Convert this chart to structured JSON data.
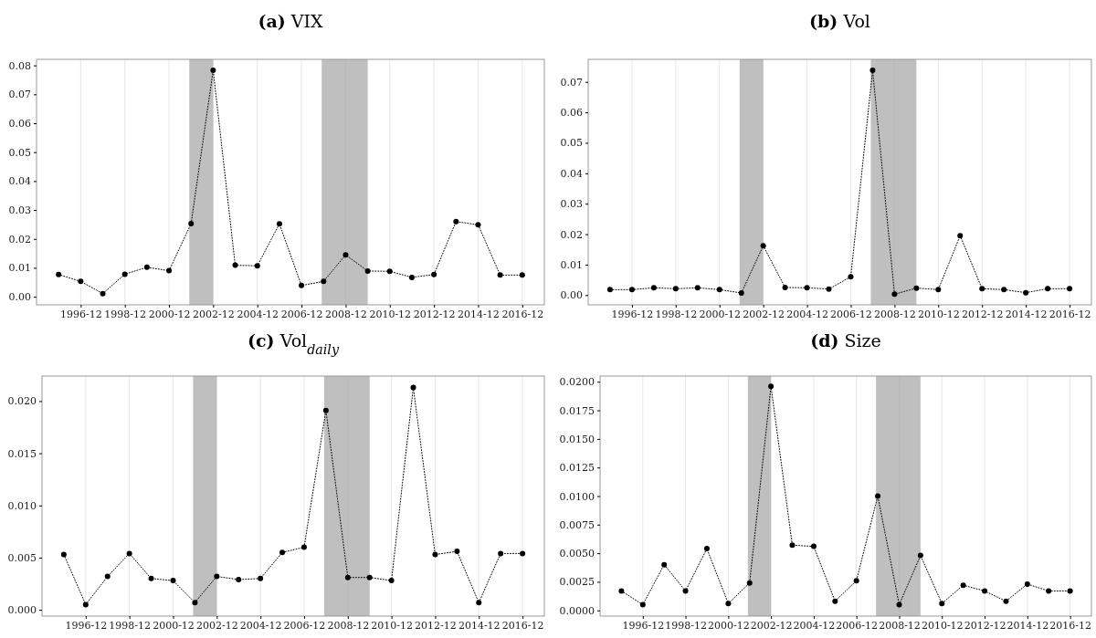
{
  "chart_data": [
    {
      "type": "line",
      "title": "(a) VIX",
      "x": [
        "1995-12",
        "1996-12",
        "1997-12",
        "1998-12",
        "1999-12",
        "2000-12",
        "2001-12",
        "2002-12",
        "2003-12",
        "2004-12",
        "2005-12",
        "2006-12",
        "2007-12",
        "2008-12",
        "2009-12",
        "2010-12",
        "2011-12",
        "2012-12",
        "2013-12",
        "2014-12",
        "2015-12",
        "2016-12"
      ],
      "series": [
        {
          "color": "#000000",
          "values": [
            0.0077,
            0.0053,
            0.0011,
            0.0078,
            0.0102,
            0.009,
            0.0253,
            0.0783,
            0.0109,
            0.0107,
            0.0252,
            0.0039,
            0.0053,
            0.0145,
            0.0089,
            0.0088,
            0.0067,
            0.0077,
            0.026,
            0.0249,
            0.0075,
            0.0075
          ]
        }
      ],
      "xlim": [
        "1994-12",
        "2017-12"
      ],
      "xticks": [
        "1996-12",
        "1998-12",
        "2000-12",
        "2002-12",
        "2004-12",
        "2006-12",
        "2008-12",
        "2010-12",
        "2012-12",
        "2014-12",
        "2016-12"
      ],
      "ylim": [
        -0.0028,
        0.0821
      ],
      "yticks": [
        {
          "value": 0,
          "label": "0.00"
        },
        {
          "value": 0.01,
          "label": "0.01"
        },
        {
          "value": 0.02,
          "label": "0.02"
        },
        {
          "value": 0.03,
          "label": "0.03"
        },
        {
          "value": 0.04,
          "label": "0.04"
        },
        {
          "value": 0.05,
          "label": "0.05"
        },
        {
          "value": 0.06,
          "label": "0.06"
        },
        {
          "value": 0.07,
          "label": "0.07"
        },
        {
          "value": 0.08,
          "label": "0.08"
        }
      ],
      "bands": [
        {
          "axis": "x",
          "from": "2001-11",
          "to": "2002-12",
          "color": "#bfbfbf"
        },
        {
          "axis": "x",
          "from": "2007-11",
          "to": "2009-12",
          "color": "#bfbfbf"
        }
      ],
      "grid": "x",
      "marker": "circle",
      "line_style": "dotted"
    },
    {
      "type": "line",
      "title": "(b) Vol",
      "x": [
        "1995-12",
        "1996-12",
        "1997-12",
        "1998-12",
        "1999-12",
        "2000-12",
        "2001-12",
        "2002-12",
        "2003-12",
        "2004-12",
        "2005-12",
        "2006-12",
        "2007-12",
        "2008-12",
        "2009-12",
        "2010-12",
        "2011-12",
        "2012-12",
        "2013-12",
        "2014-12",
        "2015-12",
        "2016-12"
      ],
      "series": [
        {
          "color": "#000000",
          "values": [
            0.0018,
            0.0018,
            0.0024,
            0.0021,
            0.0024,
            0.0018,
            0.0007,
            0.0162,
            0.0025,
            0.0024,
            0.002,
            0.006,
            0.0738,
            0.0003,
            0.0023,
            0.0018,
            0.0195,
            0.0021,
            0.0018,
            0.0008,
            0.0021,
            0.0021
          ]
        }
      ],
      "xlim": [
        "1994-12",
        "2017-12"
      ],
      "xticks": [
        "1996-12",
        "1998-12",
        "2000-12",
        "2002-12",
        "2004-12",
        "2006-12",
        "2008-12",
        "2010-12",
        "2012-12",
        "2014-12",
        "2016-12"
      ],
      "ylim": [
        -0.0032,
        0.0774
      ],
      "yticks": [
        {
          "value": 0,
          "label": "0.00"
        },
        {
          "value": 0.01,
          "label": "0.01"
        },
        {
          "value": 0.02,
          "label": "0.02"
        },
        {
          "value": 0.03,
          "label": "0.03"
        },
        {
          "value": 0.04,
          "label": "0.04"
        },
        {
          "value": 0.05,
          "label": "0.05"
        },
        {
          "value": 0.06,
          "label": "0.06"
        },
        {
          "value": 0.07,
          "label": "0.07"
        }
      ],
      "bands": [
        {
          "axis": "x",
          "from": "2001-11",
          "to": "2002-12",
          "color": "#bfbfbf"
        },
        {
          "axis": "x",
          "from": "2007-11",
          "to": "2009-12",
          "color": "#bfbfbf"
        }
      ],
      "grid": "x",
      "marker": "circle",
      "line_style": "dotted"
    },
    {
      "type": "line",
      "title": "(c) Vol$_{daily}$",
      "x": [
        "1995-12",
        "1996-12",
        "1997-12",
        "1998-12",
        "1999-12",
        "2000-12",
        "2001-12",
        "2002-12",
        "2003-12",
        "2004-12",
        "2005-12",
        "2006-12",
        "2007-12",
        "2008-12",
        "2009-12",
        "2010-12",
        "2011-12",
        "2012-12",
        "2013-12",
        "2014-12",
        "2015-12",
        "2016-12"
      ],
      "series": [
        {
          "color": "#000000",
          "values": [
            0.0053,
            0.0005,
            0.0032,
            0.0054,
            0.003,
            0.0028,
            0.0007,
            0.0032,
            0.0029,
            0.003,
            0.0055,
            0.006,
            0.0191,
            0.0031,
            0.0031,
            0.0028,
            0.0213,
            0.0053,
            0.0056,
            0.0007,
            0.0054,
            0.0054
          ]
        }
      ],
      "xlim": [
        "1994-12",
        "2017-12"
      ],
      "xticks": [
        "1996-12",
        "1998-12",
        "2000-12",
        "2002-12",
        "2004-12",
        "2006-12",
        "2008-12",
        "2010-12",
        "2012-12",
        "2014-12",
        "2016-12"
      ],
      "ylim": [
        -0.0006,
        0.0224
      ],
      "yticks": [
        {
          "value": 0,
          "label": "0.000"
        },
        {
          "value": 0.005,
          "label": "0.005"
        },
        {
          "value": 0.01,
          "label": "0.010"
        },
        {
          "value": 0.015,
          "label": "0.015"
        },
        {
          "value": 0.02,
          "label": "0.020"
        }
      ],
      "bands": [
        {
          "axis": "x",
          "from": "2001-11",
          "to": "2002-12",
          "color": "#bfbfbf"
        },
        {
          "axis": "x",
          "from": "2007-11",
          "to": "2009-12",
          "color": "#bfbfbf"
        }
      ],
      "grid": "x",
      "marker": "circle",
      "line_style": "dotted"
    },
    {
      "type": "line",
      "title": "(d) Size",
      "x": [
        "1995-12",
        "1996-12",
        "1997-12",
        "1998-12",
        "1999-12",
        "2000-12",
        "2001-12",
        "2002-12",
        "2003-12",
        "2004-12",
        "2005-12",
        "2006-12",
        "2007-12",
        "2008-12",
        "2009-12",
        "2010-12",
        "2011-12",
        "2012-12",
        "2013-12",
        "2014-12",
        "2015-12",
        "2016-12"
      ],
      "series": [
        {
          "color": "#000000",
          "values": [
            0.0017,
            0.0005,
            0.004,
            0.0017,
            0.0054,
            0.0006,
            0.0024,
            0.0196,
            0.0057,
            0.0056,
            0.0008,
            0.0026,
            0.01,
            0.0005,
            0.0048,
            0.0006,
            0.0022,
            0.0017,
            0.0008,
            0.0023,
            0.0017,
            0.0017
          ]
        }
      ],
      "xlim": [
        "1994-12",
        "2017-12"
      ],
      "xticks": [
        "1996-12",
        "1998-12",
        "2000-12",
        "2002-12",
        "2004-12",
        "2006-12",
        "2008-12",
        "2010-12",
        "2012-12",
        "2014-12",
        "2016-12"
      ],
      "ylim": [
        -0.0005,
        0.0205
      ],
      "yticks": [
        {
          "value": 0,
          "label": "0.0000"
        },
        {
          "value": 0.0025,
          "label": "0.0025"
        },
        {
          "value": 0.005,
          "label": "0.0050"
        },
        {
          "value": 0.0075,
          "label": "0.0075"
        },
        {
          "value": 0.01,
          "label": "0.0100"
        },
        {
          "value": 0.0125,
          "label": "0.0125"
        },
        {
          "value": 0.015,
          "label": "0.0150"
        },
        {
          "value": 0.0175,
          "label": "0.0175"
        },
        {
          "value": 0.02,
          "label": "0.0200"
        }
      ],
      "bands": [
        {
          "axis": "x",
          "from": "2001-11",
          "to": "2002-12",
          "color": "#bfbfbf"
        },
        {
          "axis": "x",
          "from": "2007-11",
          "to": "2009-12",
          "color": "#bfbfbf"
        }
      ],
      "grid": "x",
      "marker": "circle",
      "line_style": "dotted"
    }
  ]
}
